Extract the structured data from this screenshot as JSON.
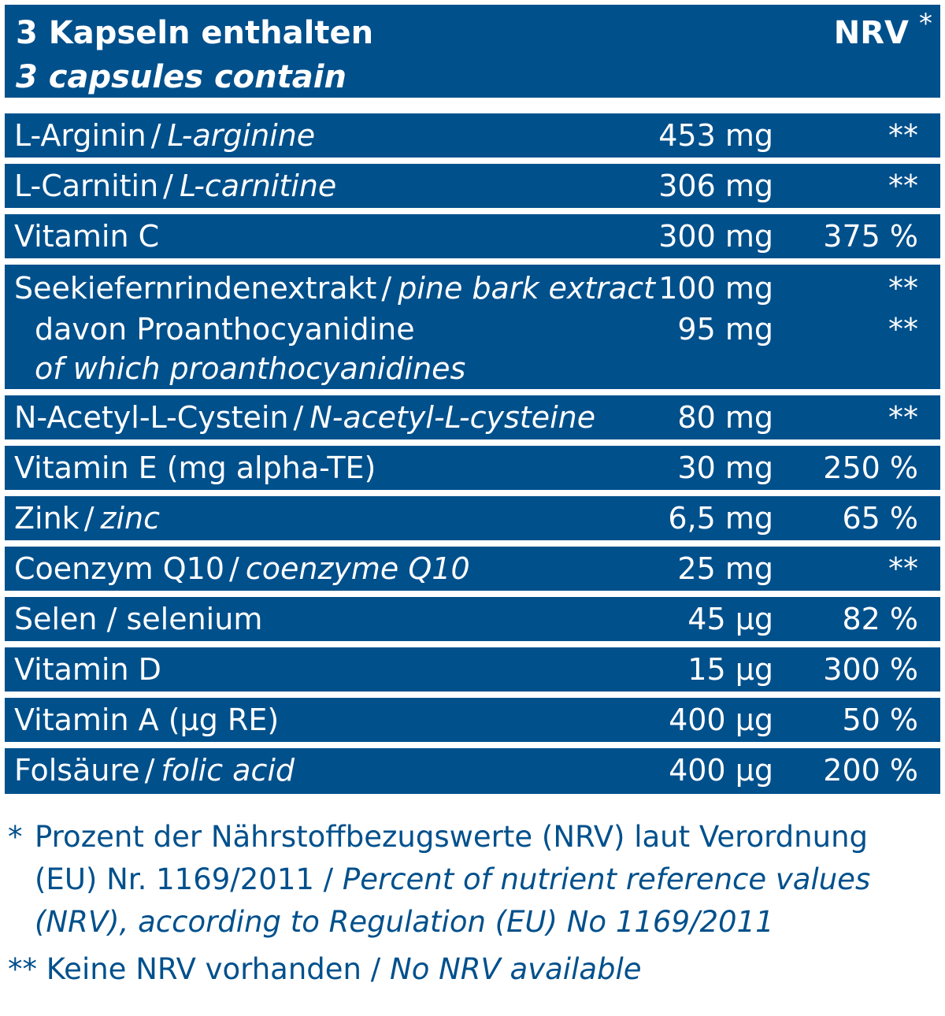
{
  "header": {
    "title_de": "3 Kapseln enthalten",
    "title_en": "3 capsules contain",
    "nrv_label": "NRV",
    "nrv_mark": "*"
  },
  "rows": [
    {
      "name_de": "L-Arginin",
      "sep": "/",
      "name_en": "L-arginine",
      "amount": "453 mg",
      "nrv": "**"
    },
    {
      "name_de": "L-Carnitin",
      "sep": "/",
      "name_en": "L-carnitine",
      "amount": "306 mg",
      "nrv": "**"
    },
    {
      "name_de": "Vitamin C",
      "amount": "300 mg",
      "nrv": "375 %"
    },
    {
      "name_de": "Seekiefernrindenextrakt",
      "sep": "/",
      "name_en": "pine bark extract",
      "amount": "100 mg",
      "nrv": "**",
      "sub_de": "davon Proanthocyanidine",
      "sub_en": "of which proanthocyanidines",
      "sub_amount": "95 mg",
      "sub_nrv": "**"
    },
    {
      "name_de": "N-Acetyl-L-Cystein",
      "sep": "/",
      "name_en": "N-acetyl-L-cysteine",
      "amount": "80 mg",
      "nrv": "**"
    },
    {
      "name_de": "Vitamin E (mg alpha-TE)",
      "amount": "30 mg",
      "nrv": "250 %"
    },
    {
      "name_de": "Zink",
      "sep": "/",
      "name_en": "zinc",
      "amount": "6,5 mg",
      "nrv": "65 %"
    },
    {
      "name_de": "Coenzym Q10",
      "sep": "/",
      "name_en": "coenzyme Q10",
      "amount": "25 mg",
      "nrv": "**"
    },
    {
      "name_de": "Selen / selenium",
      "amount": "45 µg",
      "nrv": "82 %"
    },
    {
      "name_de": "Vitamin D",
      "amount": "15 µg",
      "nrv": "300 %"
    },
    {
      "name_de": "Vitamin A (µg RE)",
      "amount": "400 µg",
      "nrv": "50 %"
    },
    {
      "name_de": "Folsäure",
      "sep": "/",
      "name_en": "folic acid",
      "amount": "400 µg",
      "nrv": "200 %"
    }
  ],
  "footnotes": {
    "note1_mark": "*",
    "note1_de": "Prozent der Nährstoffbezugswerte (NRV) laut Verordnung (EU) Nr. 1169/2011",
    "note1_sep": "/",
    "note1_en": "Percent of nutrient reference values (NRV), according to Regulation (EU) No 1169/2011",
    "note2_mark": "**",
    "note2_de": "Keine NRV vorhanden",
    "note2_sep": "/",
    "note2_en": "No NRV available"
  },
  "colors": {
    "brand_blue": "#00508c",
    "text_on_blue": "#ffffff",
    "background": "#ffffff"
  }
}
